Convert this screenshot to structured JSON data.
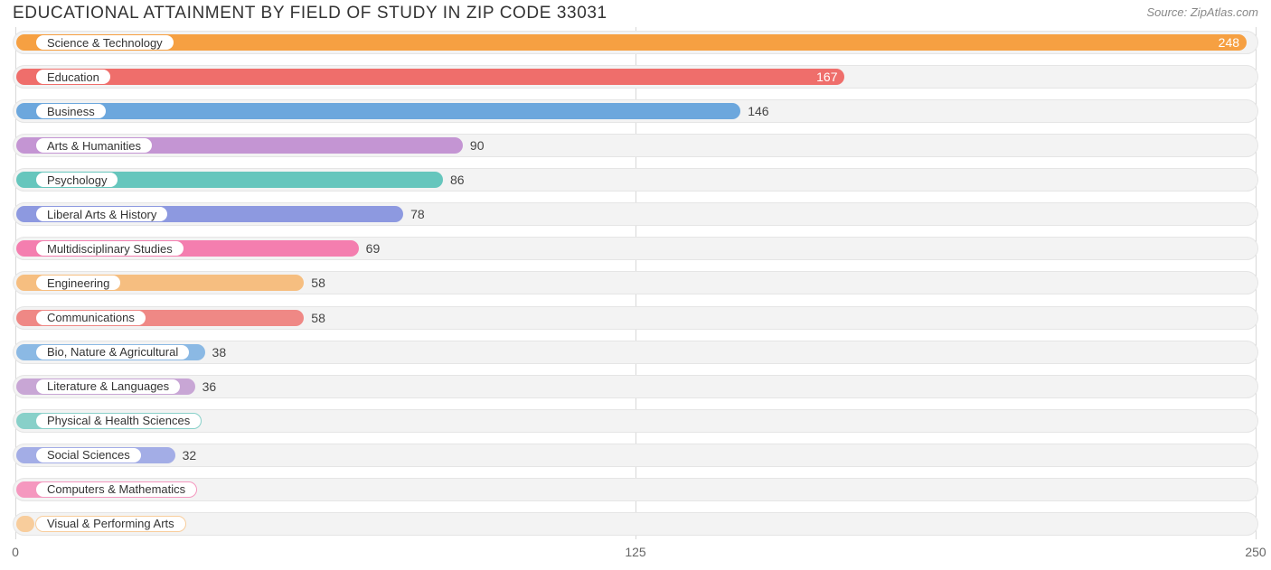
{
  "title": "EDUCATIONAL ATTAINMENT BY FIELD OF STUDY IN ZIP CODE 33031",
  "source": "Source: ZipAtlas.com",
  "chart": {
    "type": "bar-horizontal",
    "xlim": [
      0,
      250
    ],
    "xticks": [
      0,
      125,
      250
    ],
    "track_bg": "#f3f3f3",
    "track_border": "#e5e5e5",
    "grid_color": "#d8d8d8",
    "badge_bg": "#ffffff",
    "title_color": "#333333",
    "source_color": "#888888",
    "tick_color": "#666666",
    "value_out_color": "#444444",
    "title_fontsize": 19,
    "label_fontsize": 13,
    "value_fontsize": 14,
    "tick_fontsize": 14,
    "bars": [
      {
        "label": "Science & Technology",
        "value": 248,
        "color": "#f6a042",
        "value_inside": true
      },
      {
        "label": "Education",
        "value": 167,
        "color": "#ef6e6b",
        "value_inside": true
      },
      {
        "label": "Business",
        "value": 146,
        "color": "#6ca7dd",
        "value_inside": false
      },
      {
        "label": "Arts & Humanities",
        "value": 90,
        "color": "#c495d3",
        "value_inside": false
      },
      {
        "label": "Psychology",
        "value": 86,
        "color": "#66c6bd",
        "value_inside": false
      },
      {
        "label": "Liberal Arts & History",
        "value": 78,
        "color": "#8d99e0",
        "value_inside": false
      },
      {
        "label": "Multidisciplinary Studies",
        "value": 69,
        "color": "#f47eaf",
        "value_inside": false
      },
      {
        "label": "Engineering",
        "value": 58,
        "color": "#f6be80",
        "value_inside": false
      },
      {
        "label": "Communications",
        "value": 58,
        "color": "#ef8885",
        "value_inside": false
      },
      {
        "label": "Bio, Nature & Agricultural",
        "value": 38,
        "color": "#8bb9e4",
        "value_inside": false
      },
      {
        "label": "Literature & Languages",
        "value": 36,
        "color": "#c8a6d5",
        "value_inside": false
      },
      {
        "label": "Physical & Health Sciences",
        "value": 33,
        "color": "#88d0c9",
        "value_inside": false
      },
      {
        "label": "Social Sciences",
        "value": 32,
        "color": "#a3ade6",
        "value_inside": false
      },
      {
        "label": "Computers & Mathematics",
        "value": 28,
        "color": "#f598bf",
        "value_inside": false
      },
      {
        "label": "Visual & Performing Arts",
        "value": 0,
        "color": "#f8cd9c",
        "value_inside": false
      }
    ]
  }
}
